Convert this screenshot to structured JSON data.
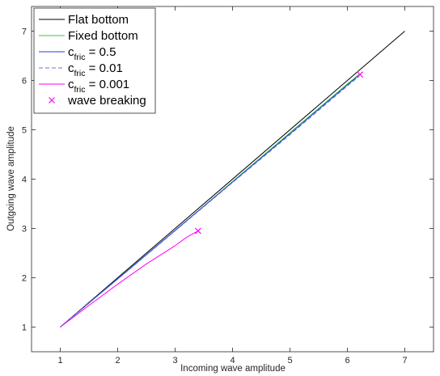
{
  "chart_data": {
    "type": "line",
    "xlabel": "Incoming wave amplitude",
    "ylabel": "Outgoing wave amplitude",
    "xlim": [
      0.5,
      7.5
    ],
    "ylim": [
      0.5,
      7.5
    ],
    "xticks": [
      "1",
      "2",
      "3",
      "4",
      "5",
      "6",
      "7"
    ],
    "yticks": [
      "1",
      "2",
      "3",
      "4",
      "5",
      "6",
      "7"
    ],
    "grid": false,
    "legend_position": "top-left",
    "series": [
      {
        "name": "Flat bottom",
        "color": "#000000",
        "style": "solid",
        "x": [
          1,
          7
        ],
        "y": [
          1,
          7
        ]
      },
      {
        "name": "Fixed bottom",
        "color": "#2ecc40",
        "style": "solid",
        "x": [
          1,
          2,
          3,
          4,
          5,
          6,
          6.2
        ],
        "y": [
          1,
          1.98,
          2.96,
          3.95,
          4.94,
          5.93,
          6.12
        ]
      },
      {
        "name_main": "c",
        "name_sub": "fric",
        "name_suffix": " = 0.5",
        "color": "#1f3fd8",
        "style": "solid",
        "x": [
          1,
          2,
          3,
          4,
          5,
          6,
          6.2
        ],
        "y": [
          1,
          1.98,
          2.96,
          3.94,
          4.92,
          5.91,
          6.1
        ]
      },
      {
        "name_main": "c",
        "name_sub": "fric",
        "name_suffix": " = 0.01",
        "color": "#6f6fd8",
        "style": "dashed",
        "x": [
          1,
          2,
          3,
          4,
          5,
          6,
          6.2
        ],
        "y": [
          1,
          1.97,
          2.95,
          3.93,
          4.9,
          5.89,
          6.08
        ]
      },
      {
        "name_main": "c",
        "name_sub": "fric",
        "name_suffix": " = 0.001",
        "color": "#ff00ff",
        "style": "solid",
        "x": [
          1,
          1.5,
          2,
          2.5,
          3,
          3.2,
          3.4
        ],
        "y": [
          1,
          1.44,
          1.87,
          2.28,
          2.65,
          2.82,
          2.95
        ]
      },
      {
        "name": "wave breaking",
        "color": "#ff00ff",
        "style": "marker-x",
        "x": [
          3.4,
          6.22
        ],
        "y": [
          2.95,
          6.12
        ]
      }
    ]
  }
}
